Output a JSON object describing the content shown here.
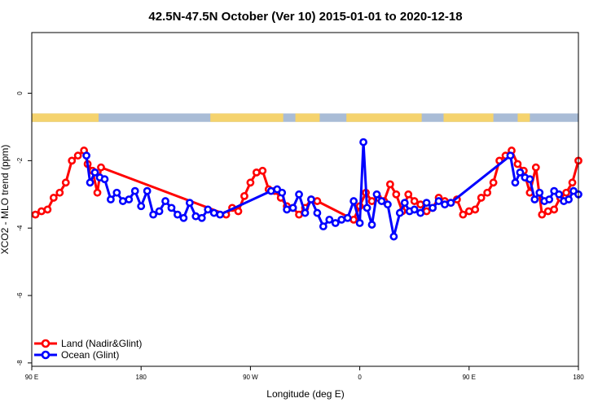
{
  "chart_data": {
    "type": "line",
    "title": "42.5N-47.5N October (Ver 10)   2015-01-01 to 2020-12-18",
    "xlabel": "Longitude (deg E)",
    "ylabel": "XCO2 - MLO trend (ppm)",
    "xlim": [
      90,
      540
    ],
    "ylim": [
      -8.1,
      1.8
    ],
    "x_ticks": [
      {
        "value": 90,
        "label": "90 E"
      },
      {
        "value": 180,
        "label": "180"
      },
      {
        "value": 270,
        "label": "90 W"
      },
      {
        "value": 360,
        "label": "0"
      },
      {
        "value": 450,
        "label": "90 E"
      },
      {
        "value": 540,
        "label": "180"
      }
    ],
    "y_ticks": [
      {
        "value": 0,
        "label": "0"
      },
      {
        "value": -2,
        "label": "-2"
      },
      {
        "value": -4,
        "label": "-4"
      },
      {
        "value": -6,
        "label": "-6"
      },
      {
        "value": -8,
        "label": "-8"
      }
    ],
    "landmask": {
      "y_top": -0.6,
      "y_bottom": -0.85,
      "land_color": "#f5d36e",
      "ocean_color": "#a9bcd6",
      "land_spans": [
        [
          90,
          145
        ],
        [
          237,
          297
        ],
        [
          307,
          327
        ],
        [
          349,
          411
        ],
        [
          429,
          470
        ],
        [
          490,
          500
        ]
      ]
    },
    "legend_position": "bottom-left",
    "series": [
      {
        "name": "Land (Nadir&Glint)",
        "color": "#ff0000",
        "x": [
          93,
          98,
          103,
          108,
          113,
          118,
          123,
          128,
          133,
          136,
          140,
          144,
          147,
          250,
          255,
          260,
          265,
          270,
          275,
          280,
          285,
          290,
          295,
          300,
          305,
          310,
          315,
          320,
          325,
          355,
          360,
          365,
          370,
          375,
          380,
          385,
          390,
          395,
          400,
          405,
          410,
          415,
          420,
          425,
          430,
          435,
          440,
          445,
          450,
          455,
          460,
          465,
          470,
          475,
          480,
          485,
          490,
          495,
          500,
          505,
          510,
          515,
          520,
          525,
          530,
          535,
          540
        ],
        "y": [
          -3.6,
          -3.5,
          -3.45,
          -3.1,
          -2.95,
          -2.65,
          -2.0,
          -1.85,
          -1.7,
          -2.1,
          -2.3,
          -2.95,
          -2.2,
          -3.6,
          -3.4,
          -3.5,
          -3.05,
          -2.65,
          -2.35,
          -2.3,
          -2.85,
          -2.9,
          -3.1,
          -3.35,
          -3.4,
          -3.6,
          -3.4,
          -3.15,
          -3.2,
          -3.75,
          -3.35,
          -2.95,
          -3.2,
          -3.1,
          -3.2,
          -2.7,
          -3.0,
          -3.5,
          -3.0,
          -3.2,
          -3.3,
          -3.5,
          -3.4,
          -3.1,
          -3.2,
          -3.25,
          -3.15,
          -3.6,
          -3.5,
          -3.45,
          -3.1,
          -2.95,
          -2.65,
          -2.0,
          -1.85,
          -1.7,
          -2.1,
          -2.3,
          -2.95,
          -2.2,
          -3.6,
          -3.5,
          -3.45,
          -3.1,
          -2.95,
          -2.65,
          -2.0
        ]
      },
      {
        "name": "Ocean (Glint)",
        "color": "#0000ff",
        "x": [
          135,
          138,
          142,
          146,
          150,
          155,
          160,
          165,
          170,
          175,
          180,
          185,
          190,
          195,
          200,
          205,
          210,
          215,
          220,
          225,
          230,
          235,
          240,
          245,
          287,
          292,
          296,
          300,
          305,
          310,
          315,
          320,
          325,
          330,
          335,
          340,
          345,
          350,
          355,
          360,
          363,
          366,
          370,
          374,
          378,
          383,
          388,
          393,
          397,
          401,
          405,
          410,
          415,
          420,
          425,
          430,
          435,
          484,
          488,
          492,
          496,
          500,
          504,
          508,
          512,
          516,
          520,
          524,
          528,
          532,
          536,
          540
        ],
        "y": [
          -1.85,
          -2.65,
          -2.35,
          -2.5,
          -2.55,
          -3.15,
          -2.95,
          -3.2,
          -3.15,
          -2.9,
          -3.35,
          -2.9,
          -3.6,
          -3.5,
          -3.2,
          -3.4,
          -3.6,
          -3.7,
          -3.25,
          -3.65,
          -3.7,
          -3.45,
          -3.55,
          -3.6,
          -2.9,
          -2.85,
          -2.95,
          -3.45,
          -3.4,
          -3.0,
          -3.55,
          -3.15,
          -3.55,
          -3.95,
          -3.75,
          -3.85,
          -3.75,
          -3.7,
          -3.2,
          -3.85,
          -1.45,
          -3.4,
          -3.9,
          -3.0,
          -3.2,
          -3.3,
          -4.25,
          -3.55,
          -3.25,
          -3.5,
          -3.45,
          -3.55,
          -3.25,
          -3.4,
          -3.2,
          -3.3,
          -3.25,
          -1.85,
          -2.65,
          -2.35,
          -2.5,
          -2.55,
          -3.15,
          -2.95,
          -3.2,
          -3.15,
          -2.9,
          -3.0,
          -3.2,
          -3.15,
          -2.9,
          -3.0
        ]
      }
    ]
  }
}
